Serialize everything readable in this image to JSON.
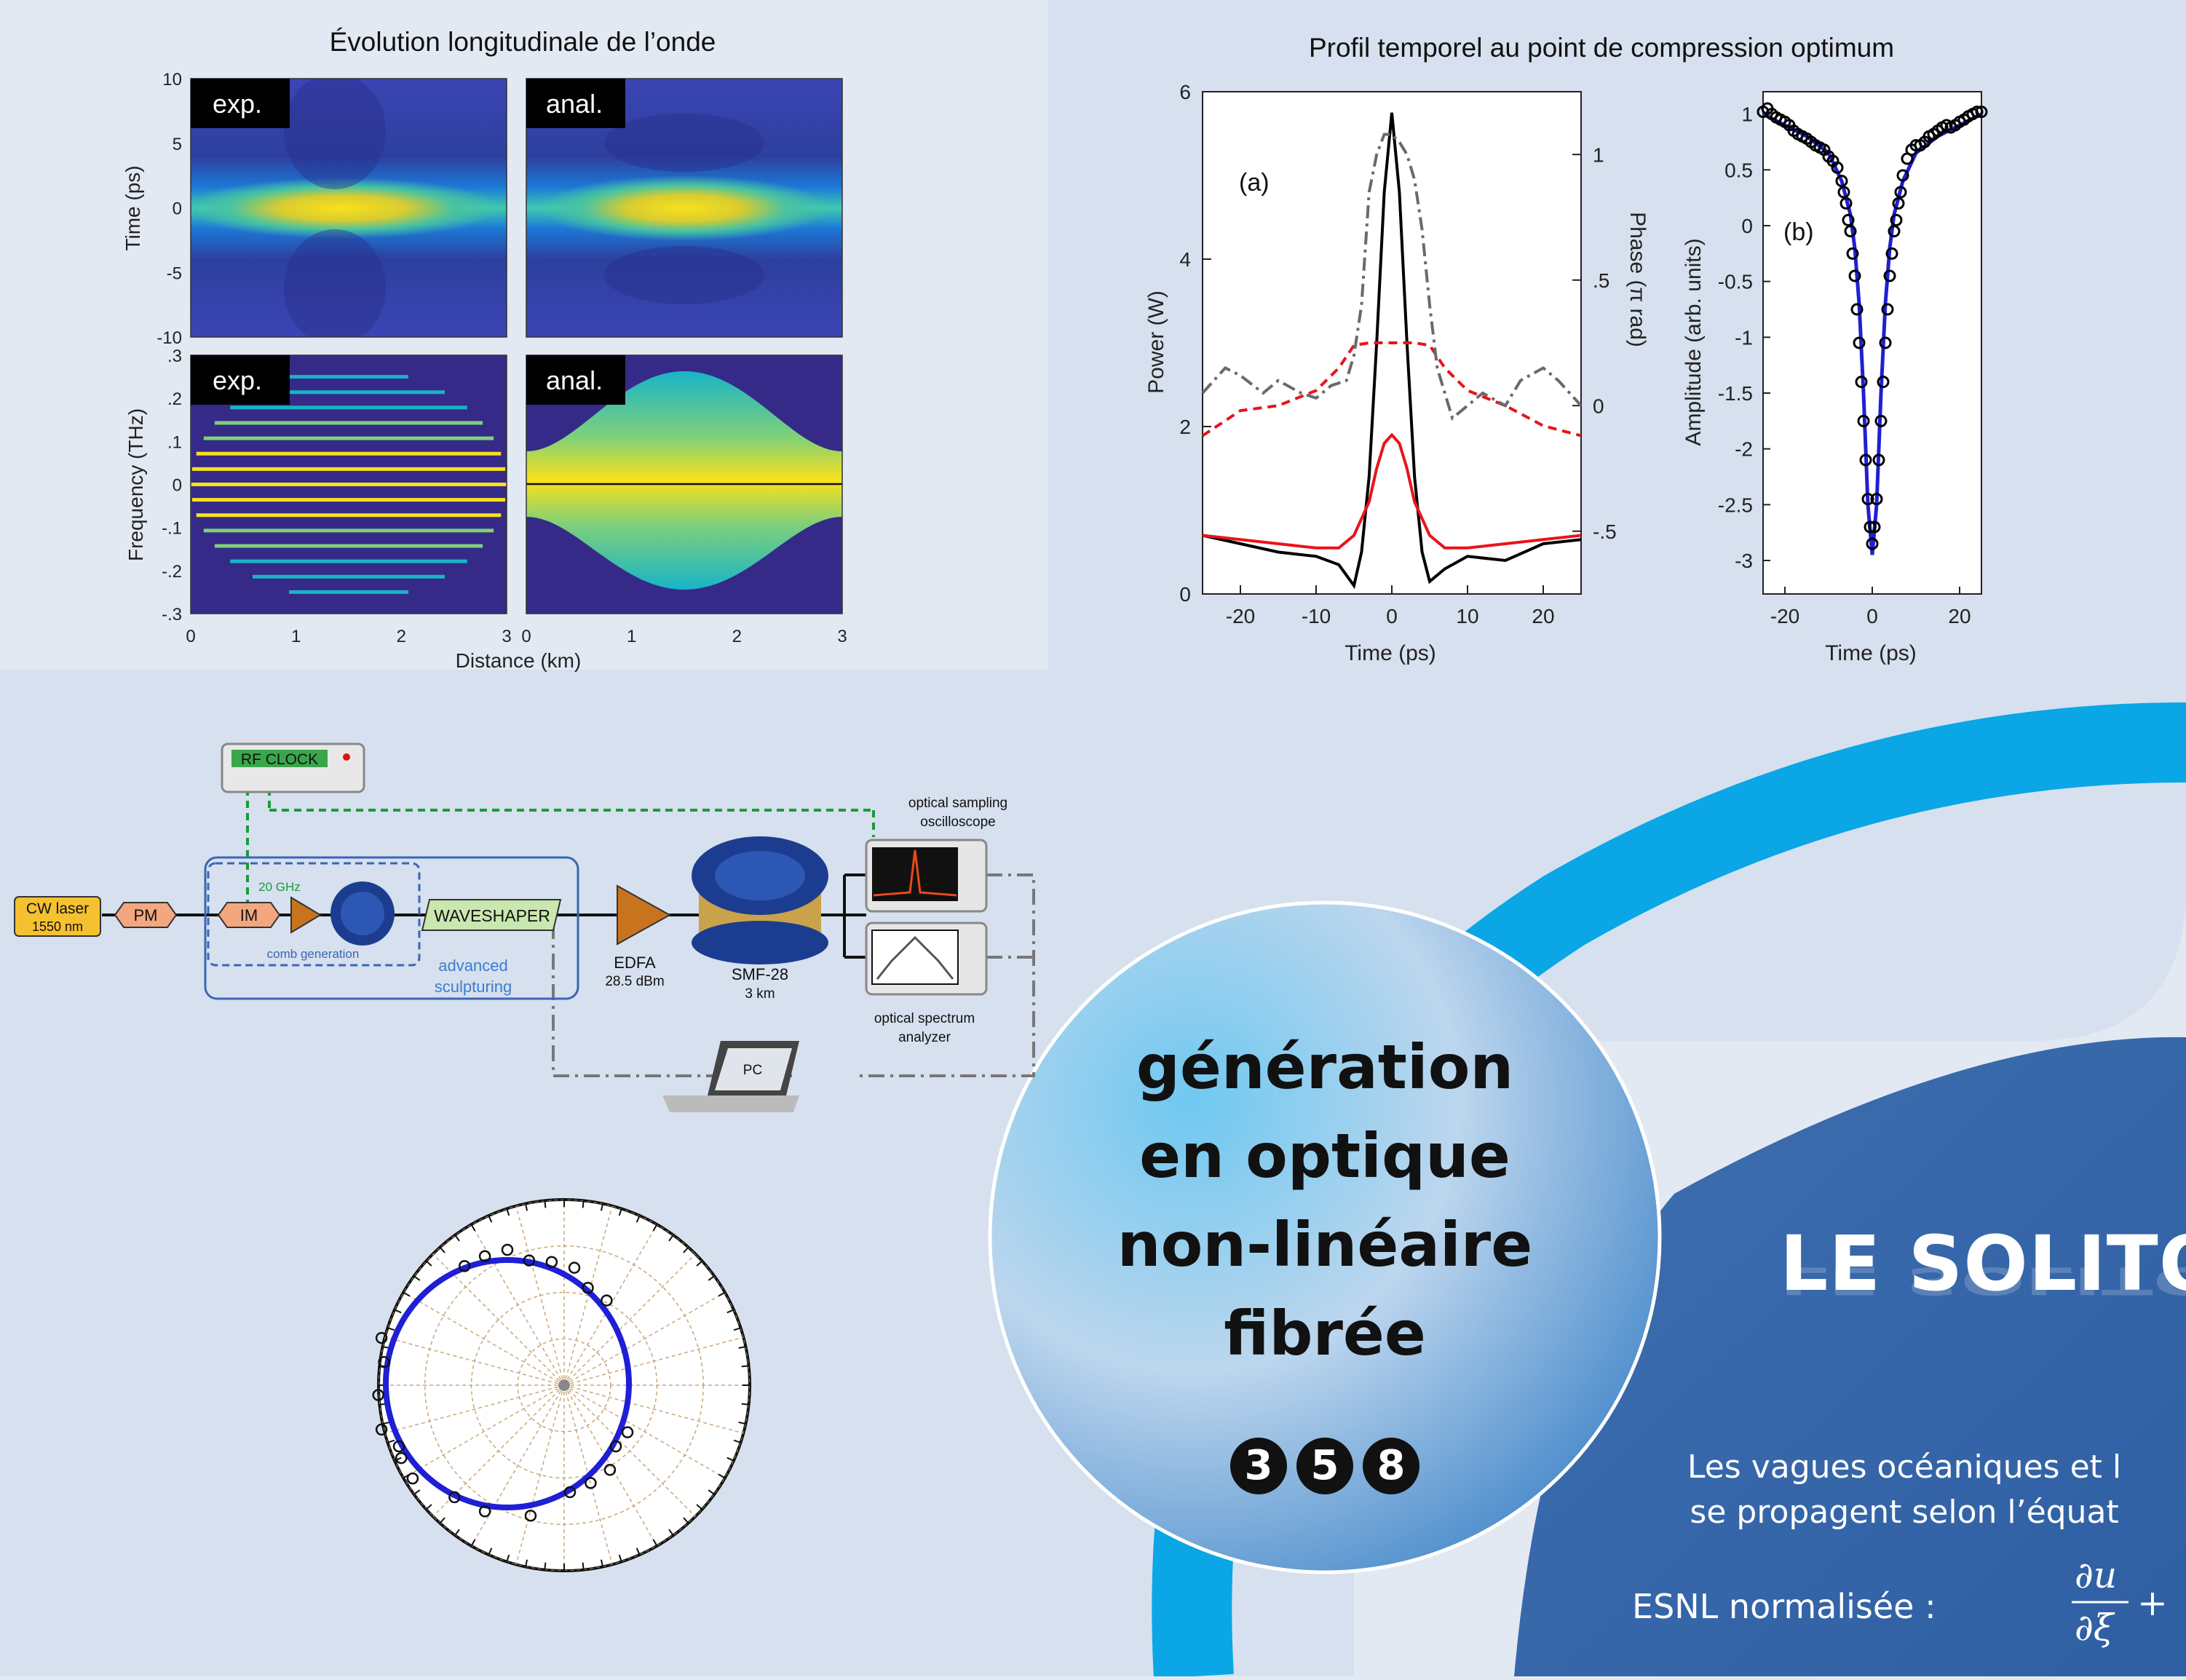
{
  "figure_a": {
    "title": "Évolution longitudinale de l’onde",
    "panel_labels": [
      "exp.",
      "anal.",
      "exp.",
      "anal."
    ],
    "ylabel_top": "Time (ps)",
    "ylabel_bottom": "Frequency (THz)",
    "xlabel": "Distance (km)",
    "yticks_top": [
      "10",
      "5",
      "0",
      "-5",
      "-10"
    ],
    "yticks_bottom": [
      ".3",
      ".2",
      ".1",
      "0",
      "-.1",
      "-.2",
      "-.3"
    ],
    "xticks": [
      "0",
      "1",
      "2",
      "3"
    ]
  },
  "figure_b": {
    "title": "Profil temporel au point de compression optimum",
    "label_a": "(a)",
    "label_b": "(b)",
    "ylabel_left": "Power (W)",
    "ylabel_right": "Phase (π rad)",
    "ylabel_b": "Amplitude (arb. units)",
    "xlabel": "Time (ps)",
    "yticks_a": [
      "0",
      "2",
      "4",
      "6"
    ],
    "yticks_phase": [
      "-.5",
      "0",
      ".5",
      "1"
    ],
    "xticks_a": [
      "-20",
      "-10",
      "0",
      "10",
      "20"
    ],
    "yticks_b": [
      "1",
      "0.5",
      "0",
      "-0.5",
      "-1",
      "-1.5",
      "-2",
      "-2.5",
      "-3"
    ],
    "xticks_b": [
      "-20",
      "0",
      "20"
    ]
  },
  "setup": {
    "rf_clock": "RF CLOCK",
    "laser_line1": "CW laser",
    "laser_line2": "1550 nm",
    "pm": "PM",
    "im": "IM",
    "ghz": "20 GHz",
    "comb": "comb generation",
    "waveshaper": "WAVESHAPER",
    "advanced1": "advanced",
    "advanced2": "sculpturing",
    "edfa1": "EDFA",
    "edfa2": "28.5 dBm",
    "smf1": "SMF-28",
    "smf2": "3 km",
    "osc1": "optical sampling",
    "osc2": "oscilloscope",
    "osa1": "optical spectrum",
    "osa2": "analyzer",
    "pc": "PC"
  },
  "circle_text": [
    "génération",
    "en optique",
    "non-linéaire",
    "fibrée"
  ],
  "numbers": [
    "3",
    "5",
    "8"
  ],
  "soliton_title": "LE SOLITO",
  "body_lines": [
    "Les vagues océaniques et l",
    "se propagent selon l’équat"
  ],
  "esnl_label": "ESNL normalisée :",
  "colors": {
    "pale_panel": "#d6e0ee",
    "cyan": "#0aa6e6",
    "blue": "#3b6db0",
    "parula_low": "#352a87",
    "parula_mid": "#18b4c8",
    "parula_high": "#f9e11b",
    "red": "#e8141a",
    "gray_dash": "#6a6a6a",
    "fit_blue": "#1f1fd6"
  },
  "chart_data": [
    {
      "type": "heatmap",
      "title": "Évolution longitudinale de l’onde",
      "panels": [
        "exp.",
        "anal."
      ],
      "xlabel": "Distance (km)",
      "ylabel": "Time (ps)",
      "xlim": [
        0,
        3
      ],
      "ylim": [
        -10,
        10
      ],
      "peak_at": {
        "distance_km": 1.5,
        "time_ps": 0
      }
    },
    {
      "type": "heatmap",
      "panels": [
        "exp.",
        "anal."
      ],
      "xlabel": "Distance (km)",
      "ylabel": "Frequency (THz)",
      "xlim": [
        0,
        3
      ],
      "ylim": [
        -0.3,
        0.3
      ],
      "comb_lines_exp": 15,
      "max_half_width_thz": 0.25
    },
    {
      "type": "line",
      "title": "Profil temporel au point de compression optimum",
      "xlabel": "Time (ps)",
      "ylabel": "Power (W)",
      "ylabel_right": "Phase (π rad)",
      "xlim": [
        -25,
        25
      ],
      "ylim": [
        0,
        6
      ],
      "ylim_right": [
        -0.75,
        1.25
      ],
      "series": [
        {
          "axis": "left",
          "color": "#000000",
          "x": [
            -25,
            -20,
            -15,
            -10,
            -7,
            -5,
            -4,
            -3,
            -2,
            -1,
            0,
            1,
            2,
            3,
            4,
            5,
            7,
            10,
            15,
            20,
            25
          ],
          "y": [
            0.7,
            0.6,
            0.5,
            0.45,
            0.35,
            0.1,
            0.5,
            1.4,
            3.0,
            4.8,
            5.75,
            4.8,
            3.0,
            1.4,
            0.5,
            0.15,
            0.3,
            0.45,
            0.4,
            0.6,
            0.65
          ]
        },
        {
          "axis": "left",
          "color": "#e8141a",
          "x": [
            -25,
            -20,
            -15,
            -10,
            -7,
            -5,
            -3,
            -2,
            -1,
            0,
            1,
            2,
            3,
            5,
            7,
            10,
            15,
            20,
            25
          ],
          "y": [
            0.7,
            0.65,
            0.6,
            0.55,
            0.55,
            0.7,
            1.1,
            1.5,
            1.8,
            1.9,
            1.8,
            1.5,
            1.1,
            0.7,
            0.55,
            0.55,
            0.6,
            0.65,
            0.7
          ]
        },
        {
          "axis": "right",
          "color": "#e8141a",
          "dash": "dashed",
          "x": [
            -25,
            -20,
            -15,
            -10,
            -7,
            -5,
            -3,
            0,
            3,
            5,
            7,
            10,
            15,
            20,
            25
          ],
          "y": [
            -0.12,
            -0.02,
            0.0,
            0.06,
            0.15,
            0.24,
            0.25,
            0.25,
            0.25,
            0.24,
            0.15,
            0.06,
            0.0,
            -0.08,
            -0.12
          ]
        },
        {
          "axis": "right",
          "color": "#6a6a6a",
          "dash": "dashdot",
          "x": [
            -25,
            -22,
            -20,
            -17,
            -15,
            -12,
            -10,
            -8,
            -6,
            -5,
            -4,
            -3,
            -2,
            -1,
            0,
            1,
            2,
            3,
            4,
            5,
            6,
            8,
            10,
            12,
            15,
            17,
            20,
            22,
            25
          ],
          "y": [
            0.05,
            0.15,
            0.12,
            0.05,
            0.1,
            0.05,
            0.03,
            0.08,
            0.1,
            0.2,
            0.4,
            0.85,
            1.0,
            1.08,
            1.08,
            1.05,
            1.0,
            0.9,
            0.7,
            0.4,
            0.15,
            -0.05,
            0.0,
            0.05,
            0.0,
            0.1,
            0.15,
            0.1,
            0.0
          ]
        }
      ]
    },
    {
      "type": "line",
      "xlabel": "Time (ps)",
      "ylabel": "Amplitude (arb. units)",
      "xlim": [
        -25,
        25
      ],
      "ylim": [
        -3.3,
        1.2
      ],
      "series": [
        {
          "style": "line",
          "color": "#1f1fd6",
          "x": [
            -25,
            -20,
            -15,
            -10,
            -7,
            -5,
            -4,
            -3,
            -2,
            -1,
            0,
            1,
            2,
            3,
            4,
            5,
            7,
            10,
            15,
            20,
            25
          ],
          "y": [
            1.0,
            0.9,
            0.8,
            0.65,
            0.4,
            0.1,
            -0.2,
            -0.7,
            -1.5,
            -2.5,
            -2.95,
            -2.5,
            -1.5,
            -0.7,
            -0.2,
            0.1,
            0.4,
            0.65,
            0.8,
            0.9,
            1.0
          ]
        },
        {
          "style": "markers",
          "color": "#000000",
          "x": [
            -25,
            -24,
            -23,
            -22,
            -21,
            -20,
            -19,
            -18,
            -17,
            -16,
            -15,
            -14,
            -13,
            -12,
            -11,
            -10,
            -9,
            -8,
            -7,
            -6.5,
            -6,
            -5.5,
            -5,
            -4.5,
            -4,
            -3.5,
            -3,
            -2.5,
            -2,
            -1.5,
            -1,
            -0.5,
            0,
            0.5,
            1,
            1.5,
            2,
            2.5,
            3,
            3.5,
            4,
            4.5,
            5,
            5.5,
            6,
            6.5,
            7,
            8,
            9,
            10,
            11,
            12,
            13,
            14,
            15,
            16,
            17,
            18,
            19,
            20,
            21,
            22,
            23,
            24,
            25
          ],
          "y": [
            1.02,
            1.05,
            1.0,
            0.97,
            0.95,
            0.93,
            0.9,
            0.85,
            0.82,
            0.8,
            0.78,
            0.75,
            0.72,
            0.7,
            0.68,
            0.62,
            0.58,
            0.52,
            0.4,
            0.3,
            0.2,
            0.05,
            -0.05,
            -0.25,
            -0.45,
            -0.75,
            -1.05,
            -1.4,
            -1.75,
            -2.1,
            -2.45,
            -2.7,
            -2.85,
            -2.7,
            -2.45,
            -2.1,
            -1.75,
            -1.4,
            -1.05,
            -0.75,
            -0.45,
            -0.25,
            -0.05,
            0.05,
            0.2,
            0.3,
            0.45,
            0.6,
            0.68,
            0.72,
            0.72,
            0.75,
            0.8,
            0.82,
            0.85,
            0.88,
            0.9,
            0.88,
            0.9,
            0.93,
            0.95,
            0.98,
            1.0,
            1.02,
            1.02
          ]
        }
      ]
    }
  ]
}
